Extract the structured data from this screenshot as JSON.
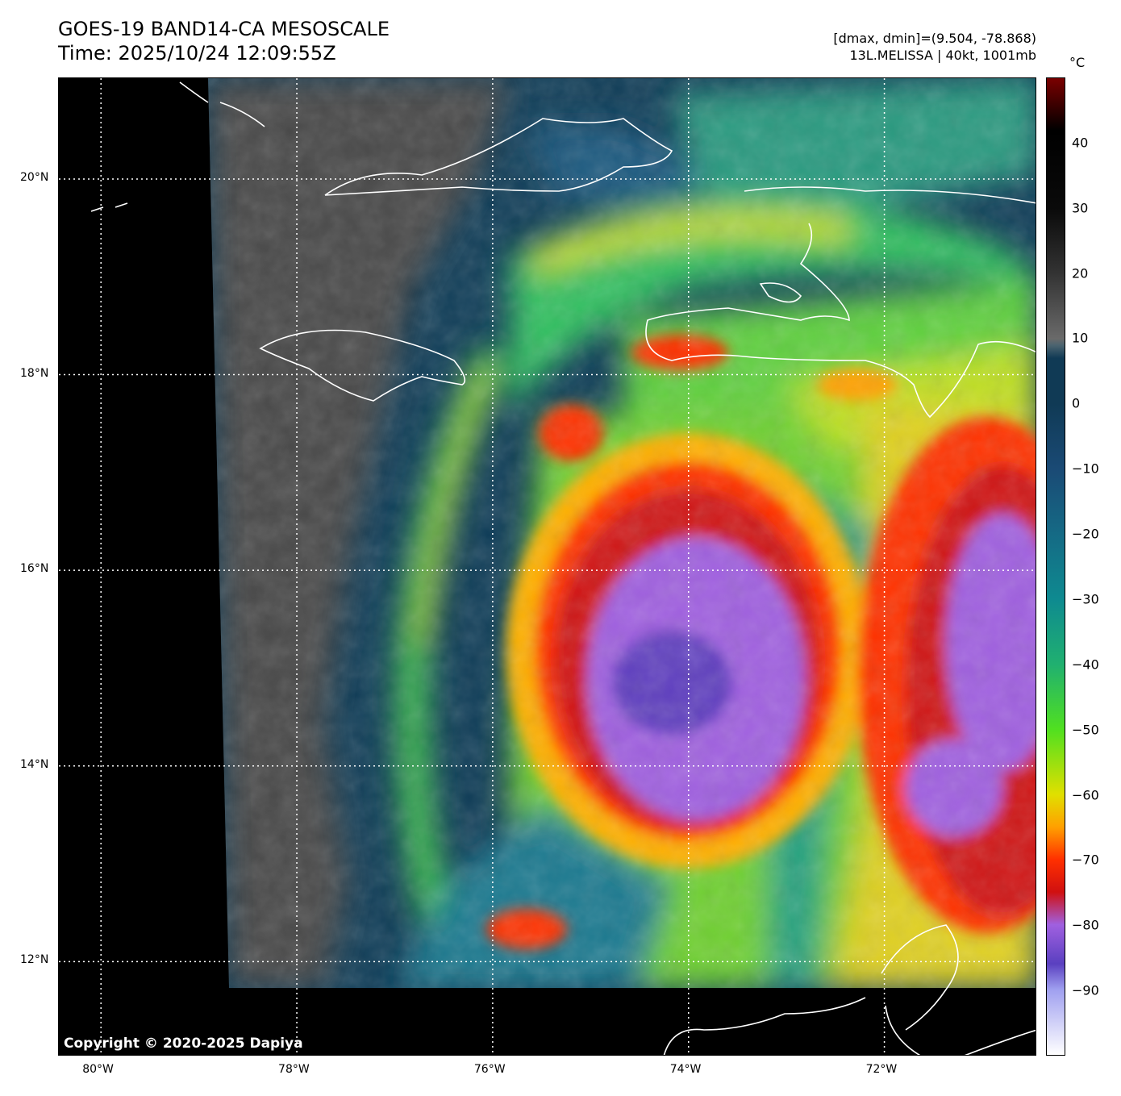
{
  "header": {
    "title_line1": "GOES-19 BAND14-CA MESOSCALE",
    "title_line2": "Time: 2025/10/24 12:09:55Z",
    "info_line1": "[dmax, dmin]=(9.504, -78.868)",
    "info_line2": "13L.MELISSA | 40kt, 1001mb"
  },
  "map": {
    "copyright": "Copyright © 2020-2025 Dapiya",
    "lon_range": [
      -80.43,
      -70.44
    ],
    "lat_range": [
      11.03,
      21.03
    ],
    "lon_ticks": [
      {
        "value": -80,
        "label": "80°W"
      },
      {
        "value": -78,
        "label": "78°W"
      },
      {
        "value": -76,
        "label": "76°W"
      },
      {
        "value": -74,
        "label": "74°W"
      },
      {
        "value": -72,
        "label": "72°W"
      }
    ],
    "lat_ticks": [
      {
        "value": 20,
        "label": "20°N"
      },
      {
        "value": 18,
        "label": "18°N"
      },
      {
        "value": 16,
        "label": "16°N"
      },
      {
        "value": 14,
        "label": "14°N"
      },
      {
        "value": 12,
        "label": "12°N"
      }
    ]
  },
  "colorbar": {
    "unit": "°C",
    "range": [
      -100,
      50
    ],
    "ticks": [
      {
        "value": 40,
        "label": "40"
      },
      {
        "value": 30,
        "label": "30"
      },
      {
        "value": 20,
        "label": "20"
      },
      {
        "value": 10,
        "label": "10"
      },
      {
        "value": 0,
        "label": "0"
      },
      {
        "value": -10,
        "label": "−10"
      },
      {
        "value": -20,
        "label": "−20"
      },
      {
        "value": -30,
        "label": "−30"
      },
      {
        "value": -40,
        "label": "−40"
      },
      {
        "value": -50,
        "label": "−50"
      },
      {
        "value": -60,
        "label": "−60"
      },
      {
        "value": -70,
        "label": "−70"
      },
      {
        "value": -80,
        "label": "−80"
      },
      {
        "value": -90,
        "label": "−90"
      }
    ],
    "stops": [
      {
        "value": 50,
        "color": "#7a0000"
      },
      {
        "value": 42,
        "color": "#000000"
      },
      {
        "value": 30,
        "color": "#0a0a0a"
      },
      {
        "value": 20,
        "color": "#333333"
      },
      {
        "value": 10,
        "color": "#6a6a6a"
      },
      {
        "value": 9,
        "color": "#4c6470"
      },
      {
        "value": 7,
        "color": "#103a55"
      },
      {
        "value": 0,
        "color": "#103a55"
      },
      {
        "value": -10,
        "color": "#1a4a75"
      },
      {
        "value": -20,
        "color": "#156a85"
      },
      {
        "value": -30,
        "color": "#0e8a90"
      },
      {
        "value": -40,
        "color": "#20b070"
      },
      {
        "value": -50,
        "color": "#50e020"
      },
      {
        "value": -60,
        "color": "#e0e000"
      },
      {
        "value": -65,
        "color": "#ffa000"
      },
      {
        "value": -70,
        "color": "#ff3000"
      },
      {
        "value": -75,
        "color": "#d01010"
      },
      {
        "value": -80,
        "color": "#a060e0"
      },
      {
        "value": -86,
        "color": "#5a40c0"
      },
      {
        "value": -90,
        "color": "#a0a0f0"
      },
      {
        "value": -100,
        "color": "#ffffff"
      }
    ]
  }
}
